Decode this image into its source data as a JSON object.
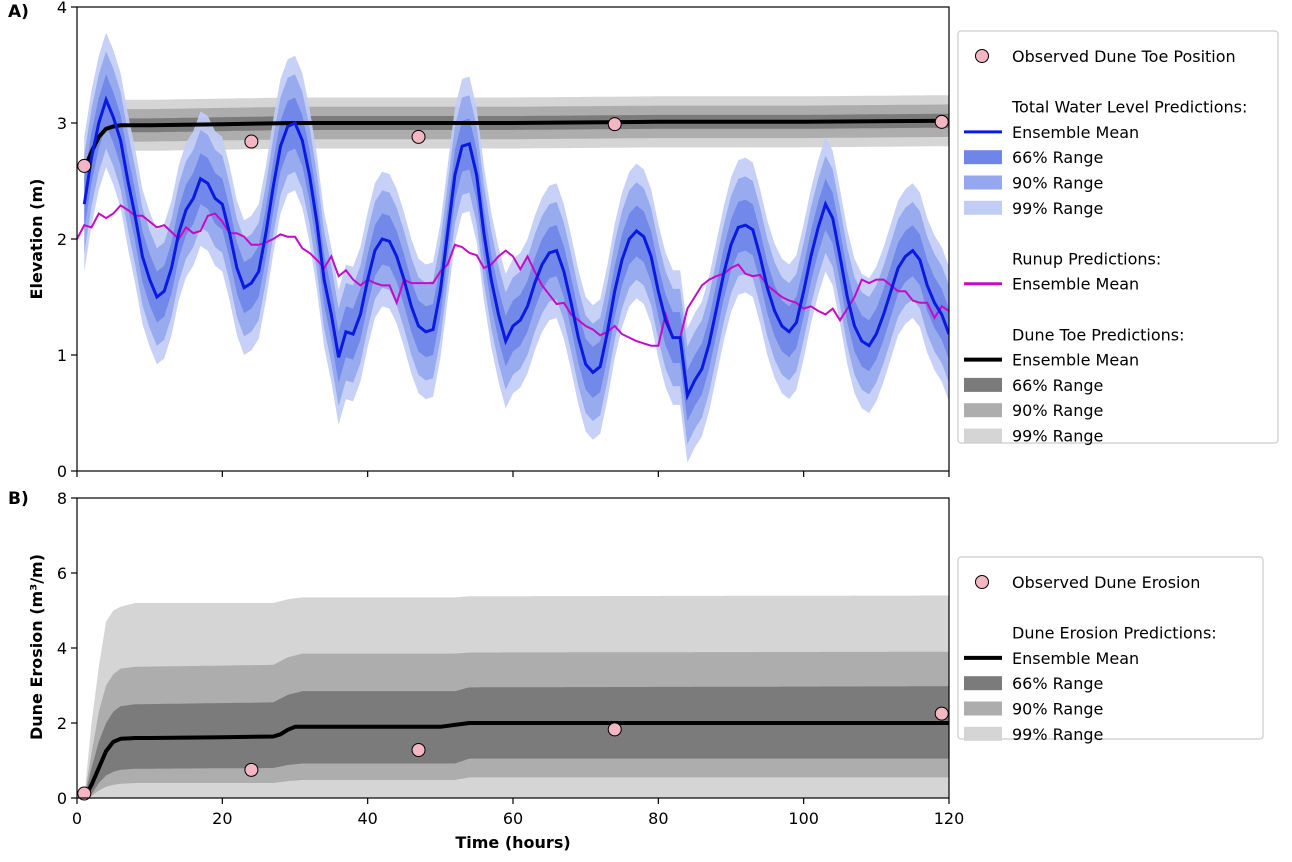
{
  "chart_data": [
    {
      "type": "line",
      "panel_label": "A)",
      "xlabel": "",
      "ylabel": "Elevation (m)",
      "xlim": [
        0,
        120
      ],
      "ylim": [
        0,
        4
      ],
      "x_ticks": [
        0,
        20,
        40,
        60,
        80,
        100,
        120
      ],
      "x_tick_labels": [
        "",
        "",
        "",
        "",
        "",
        "",
        ""
      ],
      "y_ticks": [
        0,
        1,
        2,
        3,
        4
      ],
      "y_tick_labels": [
        "0",
        "1",
        "2",
        "3",
        "4"
      ],
      "legend_position": "right",
      "legend": [
        {
          "kind": "marker",
          "label": "Observed Dune Toe Position",
          "color": "#f4b6c2"
        },
        {
          "kind": "header",
          "label": "Total Water Level Predictions:"
        },
        {
          "kind": "line",
          "label": "Ensemble Mean",
          "color": "#0a1adf"
        },
        {
          "kind": "patch",
          "label": "66% Range",
          "color": "#6f86e8"
        },
        {
          "kind": "patch",
          "label": "90% Range",
          "color": "#95a7ee"
        },
        {
          "kind": "patch",
          "label": "99% Range",
          "color": "#c2cdf6"
        },
        {
          "kind": "header",
          "label": "Runup Predictions:"
        },
        {
          "kind": "line",
          "label": "Ensemble Mean",
          "color": "#c40cc4"
        },
        {
          "kind": "header",
          "label": "Dune Toe Predictions:"
        },
        {
          "kind": "line",
          "label": "Ensemble Mean",
          "color": "#000000"
        },
        {
          "kind": "patch",
          "label": "66% Range",
          "color": "#7b7b7b"
        },
        {
          "kind": "patch",
          "label": "90% Range",
          "color": "#adadad"
        },
        {
          "kind": "patch",
          "label": "99% Range",
          "color": "#d5d5d5"
        }
      ],
      "series": [
        {
          "name": "Total Water Level Ensemble Mean",
          "color": "#0a1adf",
          "band_widths": {
            "66": 0.22,
            "90": 0.42,
            "99": 0.58
          },
          "band_colors": {
            "66": "#6f86e8",
            "90": "#95a7ee",
            "99": "#c2cdf6"
          },
          "x": [
            1,
            2,
            3,
            4,
            5,
            6,
            7,
            8,
            9,
            10,
            11,
            12,
            13,
            14,
            15,
            16,
            17,
            18,
            19,
            20,
            21,
            22,
            23,
            24,
            25,
            26,
            27,
            28,
            29,
            30,
            31,
            32,
            33,
            34,
            35,
            36,
            37,
            38,
            39,
            40,
            41,
            42,
            43,
            44,
            45,
            46,
            47,
            48,
            49,
            50,
            51,
            52,
            53,
            54,
            55,
            56,
            57,
            58,
            59,
            60,
            61,
            62,
            63,
            64,
            65,
            66,
            67,
            68,
            69,
            70,
            71,
            72,
            73,
            74,
            75,
            76,
            77,
            78,
            79,
            80,
            81,
            82,
            83,
            84,
            85,
            86,
            87,
            88,
            89,
            90,
            91,
            92,
            93,
            94,
            95,
            96,
            97,
            98,
            99,
            100,
            101,
            102,
            103,
            104,
            105,
            106,
            107,
            108,
            109,
            110,
            111,
            112,
            113,
            114,
            115,
            116,
            117,
            118,
            119,
            120
          ],
          "y": [
            2.3,
            2.7,
            3.0,
            3.2,
            3.05,
            2.85,
            2.5,
            2.2,
            1.85,
            1.65,
            1.5,
            1.55,
            1.75,
            2.05,
            2.25,
            2.35,
            2.52,
            2.48,
            2.35,
            2.3,
            2.05,
            1.75,
            1.58,
            1.62,
            1.72,
            2.05,
            2.45,
            2.8,
            2.97,
            3.0,
            2.85,
            2.55,
            2.15,
            1.65,
            1.35,
            0.98,
            1.2,
            1.18,
            1.35,
            1.65,
            1.9,
            2.0,
            1.98,
            1.85,
            1.65,
            1.42,
            1.25,
            1.2,
            1.22,
            1.55,
            2.05,
            2.55,
            2.8,
            2.82,
            2.55,
            2.05,
            1.65,
            1.35,
            1.12,
            1.25,
            1.3,
            1.42,
            1.62,
            1.78,
            1.88,
            1.9,
            1.72,
            1.45,
            1.15,
            0.92,
            0.85,
            0.9,
            1.2,
            1.55,
            1.82,
            2.0,
            2.07,
            2.02,
            1.85,
            1.55,
            1.3,
            1.15,
            1.15,
            0.65,
            0.78,
            0.88,
            1.1,
            1.4,
            1.7,
            1.95,
            2.1,
            2.12,
            2.08,
            1.85,
            1.58,
            1.38,
            1.25,
            1.2,
            1.28,
            1.55,
            1.85,
            2.1,
            2.3,
            2.18,
            1.85,
            1.5,
            1.25,
            1.12,
            1.08,
            1.18,
            1.35,
            1.55,
            1.75,
            1.85,
            1.9,
            1.82,
            1.6,
            1.45,
            1.35,
            1.18
          ]
        },
        {
          "name": "Runup Ensemble Mean",
          "color": "#c40cc4",
          "x": [
            0,
            1,
            2,
            3,
            4,
            5,
            6,
            7,
            8,
            9,
            10,
            11,
            12,
            13,
            14,
            15,
            16,
            17,
            18,
            19,
            20,
            21,
            22,
            23,
            24,
            25,
            26,
            27,
            28,
            29,
            30,
            31,
            32,
            33,
            34,
            35,
            36,
            37,
            38,
            39,
            40,
            41,
            42,
            43,
            44,
            45,
            46,
            47,
            48,
            49,
            50,
            51,
            52,
            53,
            54,
            55,
            56,
            57,
            58,
            59,
            60,
            61,
            62,
            63,
            64,
            65,
            66,
            67,
            68,
            69,
            70,
            71,
            72,
            73,
            74,
            75,
            76,
            77,
            78,
            79,
            80,
            81,
            82,
            83,
            84,
            85,
            86,
            87,
            88,
            89,
            90,
            91,
            92,
            93,
            94,
            95,
            96,
            97,
            98,
            99,
            100,
            101,
            102,
            103,
            104,
            105,
            106,
            107,
            108,
            109,
            110,
            111,
            112,
            113,
            114,
            115,
            116,
            117,
            118,
            119,
            120
          ],
          "y": [
            2.0,
            2.12,
            2.1,
            2.22,
            2.18,
            2.22,
            2.29,
            2.25,
            2.2,
            2.2,
            2.15,
            2.1,
            2.12,
            2.06,
            2.0,
            2.1,
            2.05,
            2.07,
            2.2,
            2.22,
            2.15,
            2.05,
            2.05,
            2.02,
            1.95,
            1.95,
            1.97,
            2.0,
            2.04,
            2.02,
            2.02,
            1.92,
            1.88,
            1.82,
            1.75,
            1.85,
            1.68,
            1.73,
            1.65,
            1.6,
            1.65,
            1.62,
            1.6,
            1.6,
            1.45,
            1.65,
            1.62,
            1.62,
            1.62,
            1.62,
            1.72,
            1.78,
            1.95,
            1.93,
            1.88,
            1.86,
            1.75,
            1.78,
            1.85,
            1.9,
            1.85,
            1.74,
            1.85,
            1.72,
            1.6,
            1.52,
            1.44,
            1.45,
            1.35,
            1.3,
            1.25,
            1.22,
            1.17,
            1.2,
            1.25,
            1.18,
            1.15,
            1.12,
            1.1,
            1.08,
            1.08,
            1.35,
            1.15,
            1.15,
            1.4,
            1.5,
            1.6,
            1.65,
            1.68,
            1.7,
            1.75,
            1.78,
            1.7,
            1.68,
            1.69,
            1.6,
            1.55,
            1.5,
            1.47,
            1.45,
            1.4,
            1.42,
            1.38,
            1.35,
            1.4,
            1.3,
            1.4,
            1.5,
            1.65,
            1.62,
            1.65,
            1.65,
            1.6,
            1.55,
            1.55,
            1.47,
            1.45,
            1.45,
            1.32,
            1.42,
            1.38
          ]
        },
        {
          "name": "Dune Toe Ensemble Mean",
          "color": "#000000",
          "band_widths": {
            "66": 0.06,
            "90": 0.14,
            "99": 0.22
          },
          "band_colors": {
            "66": "#7b7b7b",
            "90": "#adadad",
            "99": "#d5d5d5"
          },
          "x": [
            1,
            2,
            3,
            4,
            5,
            6,
            8,
            10,
            20,
            30,
            40,
            60,
            80,
            100,
            120
          ],
          "y": [
            2.6,
            2.75,
            2.88,
            2.95,
            2.97,
            2.98,
            2.98,
            2.98,
            2.99,
            3.0,
            3.0,
            3.0,
            3.01,
            3.01,
            3.02
          ]
        }
      ],
      "observed": {
        "name": "Observed Dune Toe Position",
        "color": "#f4b6c2",
        "x": [
          1,
          24,
          47,
          74,
          119
        ],
        "y": [
          2.63,
          2.84,
          2.88,
          2.99,
          3.01
        ]
      }
    },
    {
      "type": "line",
      "panel_label": "B)",
      "xlabel": "Time (hours)",
      "ylabel": "Dune Erosion (m³/m)",
      "xlim": [
        0,
        120
      ],
      "ylim": [
        0,
        8
      ],
      "x_ticks": [
        0,
        20,
        40,
        60,
        80,
        100,
        120
      ],
      "x_tick_labels": [
        "0",
        "20",
        "40",
        "60",
        "80",
        "100",
        "120"
      ],
      "y_ticks": [
        0,
        2,
        4,
        6,
        8
      ],
      "y_tick_labels": [
        "0",
        "2",
        "4",
        "6",
        "8"
      ],
      "legend_position": "right",
      "legend": [
        {
          "kind": "marker",
          "label": "Observed Dune Erosion",
          "color": "#f4b6c2"
        },
        {
          "kind": "header",
          "label": "Dune Erosion Predictions:"
        },
        {
          "kind": "line",
          "label": "Ensemble Mean",
          "color": "#000000"
        },
        {
          "kind": "patch",
          "label": "66% Range",
          "color": "#7b7b7b"
        },
        {
          "kind": "patch",
          "label": "90% Range",
          "color": "#adadad"
        },
        {
          "kind": "patch",
          "label": "99% Range",
          "color": "#d5d5d5"
        }
      ],
      "series": [
        {
          "name": "Ensemble Mean",
          "color": "#000000",
          "x": [
            1,
            2,
            3,
            4,
            5,
            6,
            8,
            10,
            20,
            27,
            28,
            29,
            30,
            40,
            50,
            52,
            54,
            60,
            80,
            100,
            120
          ],
          "y": [
            0.0,
            0.35,
            0.8,
            1.25,
            1.5,
            1.58,
            1.6,
            1.6,
            1.62,
            1.64,
            1.7,
            1.82,
            1.9,
            1.9,
            1.9,
            1.95,
            2.0,
            2.0,
            2.0,
            2.0,
            2.0
          ]
        },
        {
          "name": "66% Range upper",
          "color": "#7b7b7b",
          "x": [
            1,
            2,
            3,
            4,
            5,
            6,
            8,
            27,
            29,
            31,
            52,
            54,
            120
          ],
          "y": [
            0.0,
            0.8,
            1.5,
            2.0,
            2.3,
            2.45,
            2.5,
            2.55,
            2.75,
            2.85,
            2.85,
            2.95,
            2.98
          ]
        },
        {
          "name": "66% Range lower",
          "color": "#7b7b7b",
          "x": [
            1,
            2,
            3,
            4,
            5,
            6,
            8,
            27,
            29,
            31,
            52,
            54,
            120
          ],
          "y": [
            0.0,
            0.1,
            0.4,
            0.6,
            0.7,
            0.75,
            0.78,
            0.8,
            0.88,
            0.92,
            0.92,
            1.05,
            1.05
          ]
        },
        {
          "name": "90% Range upper",
          "color": "#adadad",
          "x": [
            1,
            2,
            3,
            4,
            5,
            6,
            8,
            27,
            29,
            31,
            52,
            54,
            120
          ],
          "y": [
            0.0,
            1.2,
            2.3,
            3.0,
            3.3,
            3.45,
            3.5,
            3.55,
            3.75,
            3.85,
            3.85,
            3.88,
            3.9
          ]
        },
        {
          "name": "90% Range lower",
          "color": "#adadad",
          "x": [
            1,
            2,
            3,
            4,
            5,
            6,
            8,
            27,
            29,
            31,
            52,
            54,
            120
          ],
          "y": [
            0.0,
            0.05,
            0.2,
            0.3,
            0.35,
            0.38,
            0.4,
            0.4,
            0.45,
            0.48,
            0.48,
            0.55,
            0.55
          ]
        },
        {
          "name": "99% Range upper",
          "color": "#d5d5d5",
          "x": [
            1,
            2,
            3,
            4,
            5,
            6,
            8,
            27,
            29,
            31,
            52,
            54,
            120
          ],
          "y": [
            0.0,
            2.0,
            3.5,
            4.7,
            5.0,
            5.1,
            5.2,
            5.2,
            5.3,
            5.35,
            5.35,
            5.38,
            5.4
          ]
        },
        {
          "name": "99% Range lower",
          "color": "#d5d5d5",
          "x": [
            1,
            120
          ],
          "y": [
            0.0,
            0.0
          ]
        }
      ],
      "observed": {
        "name": "Observed Dune Erosion",
        "color": "#f4b6c2",
        "x": [
          1,
          24,
          47,
          74,
          119
        ],
        "y": [
          0.12,
          0.75,
          1.28,
          1.83,
          2.25
        ]
      }
    }
  ]
}
